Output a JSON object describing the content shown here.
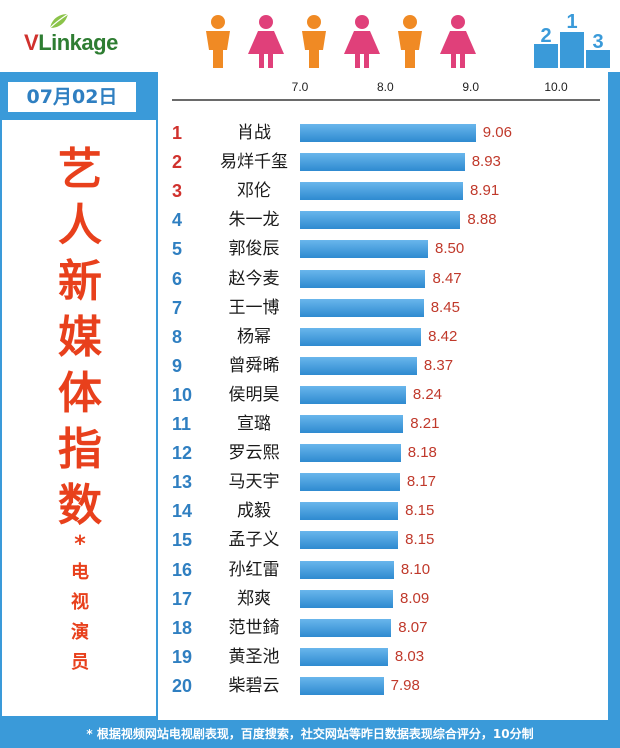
{
  "header": {
    "logo_v": "V",
    "logo_rest": "Linkage",
    "podium_digits": [
      "2",
      "1",
      "3"
    ]
  },
  "sidebar": {
    "date": "07月02日",
    "title_chars": [
      "艺",
      "人",
      "新",
      "媒",
      "体",
      "指",
      "数"
    ],
    "star": "*",
    "subtitle_chars": [
      "电",
      "视",
      "演",
      "员"
    ]
  },
  "footer": {
    "note": "* 根据视频网站电视剧表现，百度搜索，社交网站等昨日数据表现综合评分，10分制"
  },
  "colors": {
    "panel_blue": "#3a9ad9",
    "title_red": "#e8401c",
    "rank_top_red": "#d0312d",
    "rank_blue": "#2f7fc1",
    "value_red": "#c0392b",
    "figure_orange": "#f08a24",
    "figure_pink": "#e0407a"
  },
  "chart_data": {
    "type": "bar",
    "orientation": "horizontal",
    "xlim": [
      7.0,
      10.0
    ],
    "ticks": [
      "7.0",
      "8.0",
      "9.0",
      "10.0"
    ],
    "ranks": [
      "1",
      "2",
      "3",
      "4",
      "5",
      "6",
      "7",
      "8",
      "9",
      "10",
      "11",
      "12",
      "13",
      "14",
      "15",
      "16",
      "17",
      "18",
      "19",
      "20"
    ],
    "categories": [
      "肖战",
      "易烊千玺",
      "邓伦",
      "朱一龙",
      "郭俊辰",
      "赵今麦",
      "王一博",
      "杨幂",
      "曾舜晞",
      "侯明昊",
      "宣璐",
      "罗云熙",
      "马天宇",
      "成毅",
      "孟子义",
      "孙红雷",
      "郑爽",
      "范世錡",
      "黄圣池",
      "柴碧云"
    ],
    "values": [
      9.06,
      8.93,
      8.91,
      8.88,
      8.5,
      8.47,
      8.45,
      8.42,
      8.37,
      8.24,
      8.21,
      8.18,
      8.17,
      8.15,
      8.15,
      8.1,
      8.09,
      8.07,
      8.03,
      7.98
    ],
    "value_labels": [
      "9.06",
      "8.93",
      "8.91",
      "8.88",
      "8.50",
      "8.47",
      "8.45",
      "8.42",
      "8.37",
      "8.24",
      "8.21",
      "8.18",
      "8.17",
      "8.15",
      "8.15",
      "8.10",
      "8.09",
      "8.07",
      "8.03",
      "7.98"
    ],
    "grid": false,
    "legend": "none"
  }
}
